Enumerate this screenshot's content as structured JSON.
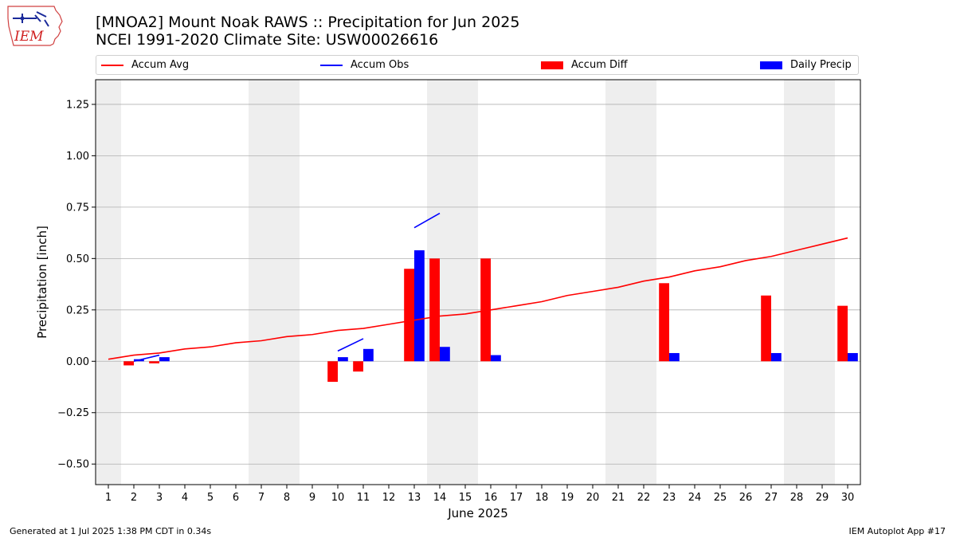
{
  "header": {
    "title_line1": "[MNOA2] Mount Noak RAWS :: Precipitation for Jun 2025",
    "title_line2": "NCEI 1991-2020 Climate Site: USW00026616"
  },
  "logo": {
    "text": "IEM",
    "icon": "iowa-state-outline-icon"
  },
  "footer": {
    "left": "Generated at 1 Jul 2025 1:38 PM CDT in 0.34s",
    "right": "IEM Autoplot App #17"
  },
  "colors": {
    "accum_avg": "#ff0000",
    "accum_obs": "#0000ff",
    "accum_diff": "#ff0000",
    "daily_precip": "#0000ff",
    "weekend_band": "#eeeeee",
    "grid": "#b0b0b0"
  },
  "chart_data": {
    "type": "bar",
    "title": "[MNOA2] Mount Noak RAWS :: Precipitation for Jun 2025",
    "subtitle": "NCEI 1991-2020 Climate Site: USW00026616",
    "xlabel": "June 2025",
    "ylabel": "Precipitation [inch]",
    "xlim": [
      0.5,
      30.5
    ],
    "ylim": [
      -0.6,
      1.37
    ],
    "grid": "y",
    "legend_placement": "top",
    "x": [
      1,
      2,
      3,
      4,
      5,
      6,
      7,
      8,
      9,
      10,
      11,
      12,
      13,
      14,
      15,
      16,
      17,
      18,
      19,
      20,
      21,
      22,
      23,
      24,
      25,
      26,
      27,
      28,
      29,
      30
    ],
    "yticks": [
      {
        "value": 1.25,
        "label": "1.25"
      },
      {
        "value": 1.0,
        "label": "1.00"
      },
      {
        "value": 0.75,
        "label": "0.75"
      },
      {
        "value": 0.5,
        "label": "0.50"
      },
      {
        "value": 0.25,
        "label": "0.25"
      },
      {
        "value": 0.0,
        "label": "0.00"
      },
      {
        "value": -0.25,
        "label": "−0.25"
      },
      {
        "value": -0.5,
        "label": "−0.50"
      }
    ],
    "weekend_days": [
      1,
      7,
      8,
      14,
      15,
      21,
      22,
      28,
      29
    ],
    "series": [
      {
        "name": "Accum Avg",
        "kind": "line",
        "values": [
          0.01,
          0.03,
          0.04,
          0.06,
          0.07,
          0.09,
          0.1,
          0.12,
          0.13,
          0.15,
          0.16,
          0.18,
          0.2,
          0.22,
          0.23,
          0.25,
          0.27,
          0.29,
          0.32,
          0.34,
          0.36,
          0.39,
          0.41,
          0.44,
          0.46,
          0.49,
          0.51,
          0.54,
          0.57,
          0.6
        ]
      },
      {
        "name": "Accum Obs",
        "kind": "segments",
        "segments": [
          {
            "x": [
              2,
              3
            ],
            "y": [
              0.0,
              0.03
            ]
          },
          {
            "x": [
              10,
              11
            ],
            "y": [
              0.05,
              0.11
            ]
          },
          {
            "x": [
              13,
              14
            ],
            "y": [
              0.65,
              0.72
            ]
          }
        ]
      },
      {
        "name": "Accum Diff",
        "kind": "bar",
        "values": [
          null,
          -0.02,
          -0.01,
          null,
          null,
          null,
          null,
          null,
          null,
          -0.1,
          -0.05,
          null,
          0.45,
          0.5,
          null,
          0.5,
          null,
          null,
          null,
          null,
          null,
          null,
          0.38,
          null,
          null,
          null,
          0.32,
          null,
          null,
          0.27
        ]
      },
      {
        "name": "Daily Precip",
        "kind": "bar",
        "values": [
          null,
          0.01,
          0.02,
          null,
          null,
          null,
          null,
          null,
          null,
          0.02,
          0.06,
          null,
          0.54,
          0.07,
          null,
          0.03,
          null,
          null,
          null,
          null,
          null,
          null,
          0.04,
          null,
          null,
          null,
          0.04,
          null,
          null,
          0.04
        ]
      }
    ]
  }
}
